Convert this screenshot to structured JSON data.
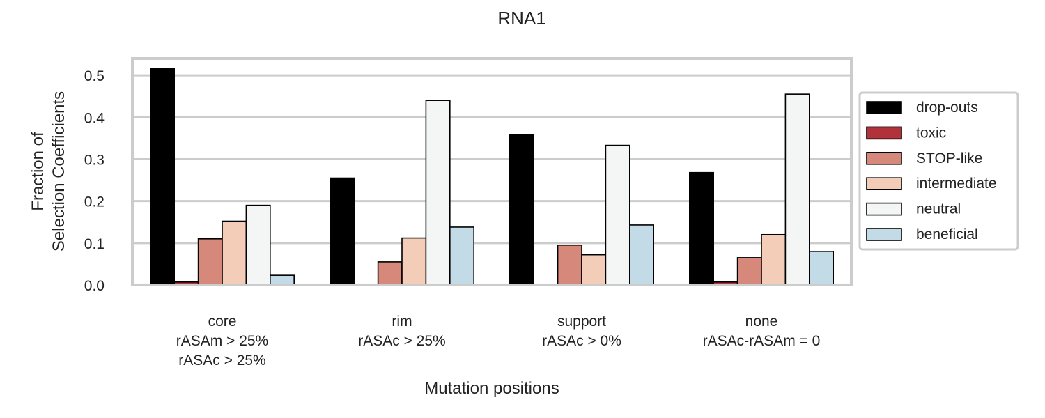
{
  "chart_data": {
    "type": "bar",
    "title": "RNA1",
    "xlabel": "Mutation positions",
    "ylabel": [
      "Fraction of",
      "Selection Coefficients"
    ],
    "categories": [
      [
        "core",
        "rASAm > 25%",
        "rASAc > 25%"
      ],
      [
        "rim",
        "rASAc > 25%"
      ],
      [
        "support",
        "rASAc > 0%"
      ],
      [
        "none",
        "rASAc-rASAm = 0"
      ]
    ],
    "ylim": [
      0,
      0.54
    ],
    "yticks": [
      "0.0",
      "0.1",
      "0.2",
      "0.3",
      "0.4",
      "0.5"
    ],
    "grid": true,
    "legend_position": "right",
    "series": [
      {
        "name": "drop-outs",
        "color": "#000000",
        "values": [
          0.516,
          0.255,
          0.358,
          0.268
        ]
      },
      {
        "name": "toxic",
        "color": "#b2323c",
        "values": [
          0.007,
          0.0,
          0.0,
          0.007
        ]
      },
      {
        "name": "STOP-like",
        "color": "#d6897a",
        "values": [
          0.11,
          0.055,
          0.095,
          0.065
        ]
      },
      {
        "name": "intermediate",
        "color": "#f4cdb9",
        "values": [
          0.152,
          0.112,
          0.072,
          0.12
        ]
      },
      {
        "name": "neutral",
        "color": "#f3f6f5",
        "values": [
          0.19,
          0.44,
          0.333,
          0.455
        ]
      },
      {
        "name": "beneficial",
        "color": "#c2dbe6",
        "values": [
          0.023,
          0.138,
          0.143,
          0.08
        ]
      }
    ]
  }
}
